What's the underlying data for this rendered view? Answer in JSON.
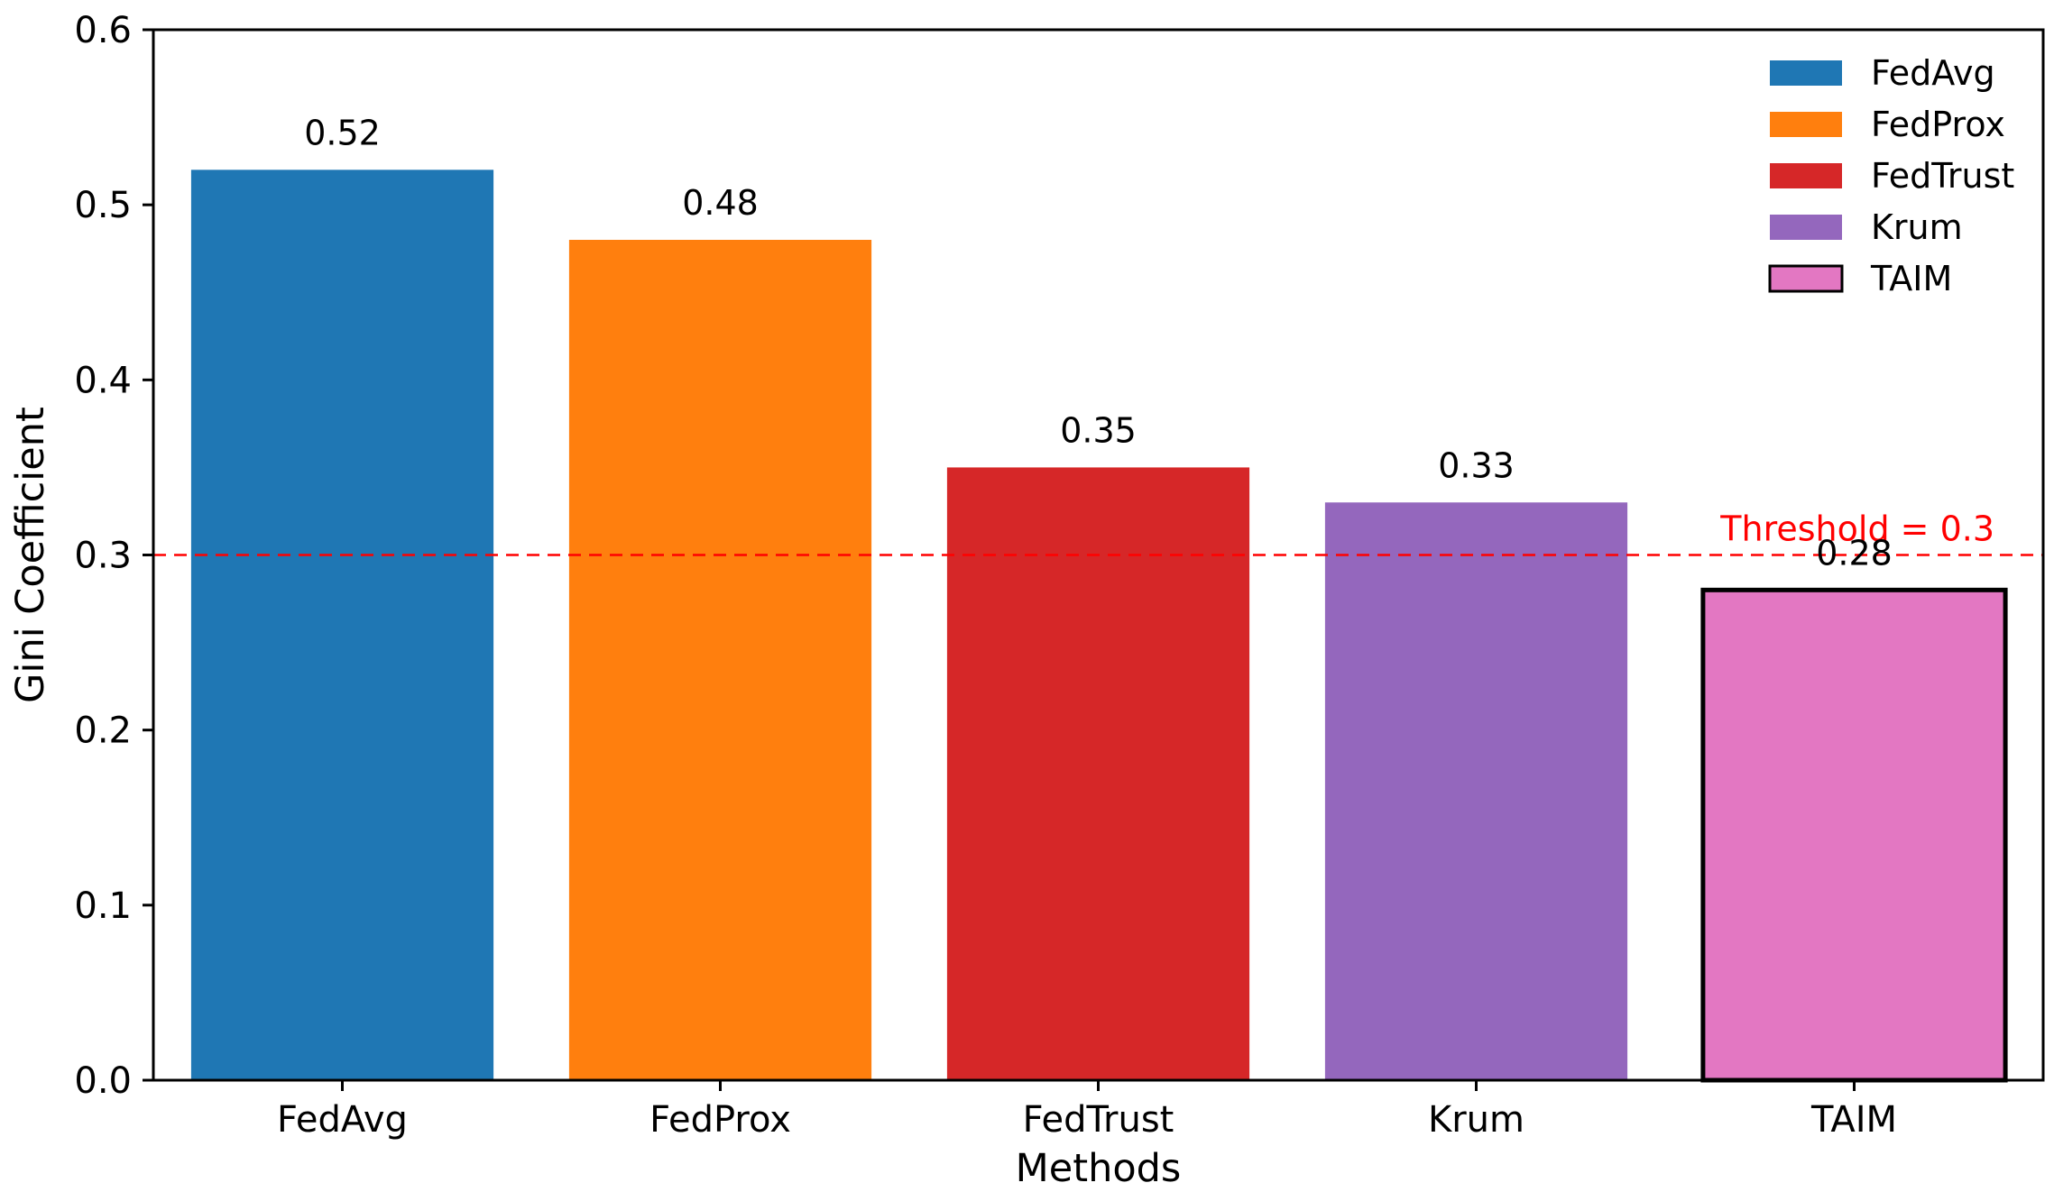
{
  "chart_data": {
    "type": "bar",
    "categories": [
      "FedAvg",
      "FedProx",
      "FedTrust",
      "Krum",
      "TAIM"
    ],
    "values": [
      0.52,
      0.48,
      0.35,
      0.33,
      0.28
    ],
    "data_labels": [
      "0.52",
      "0.48",
      "0.35",
      "0.33",
      "0.28"
    ],
    "colors": [
      "#1f77b4",
      "#ff7f0e",
      "#d62728",
      "#9467bd",
      "#e377c2"
    ],
    "highlight": {
      "category": "TAIM",
      "edge_color": "#000000"
    },
    "xlabel": "Methods",
    "ylabel": "Gini Coefficient",
    "ylim": [
      0,
      0.6
    ],
    "yticks": [
      0.0,
      0.1,
      0.2,
      0.3,
      0.4,
      0.5,
      0.6
    ],
    "ytick_labels": [
      "0.0",
      "0.1",
      "0.2",
      "0.3",
      "0.4",
      "0.5",
      "0.6"
    ],
    "grid": false,
    "threshold": {
      "value": 0.3,
      "label": "Threshold = 0.3",
      "color": "#ff0000",
      "style": "dashed"
    },
    "legend": {
      "placement": "top-right",
      "entries": [
        "FedAvg",
        "FedProx",
        "FedTrust",
        "Krum",
        "TAIM"
      ]
    }
  }
}
